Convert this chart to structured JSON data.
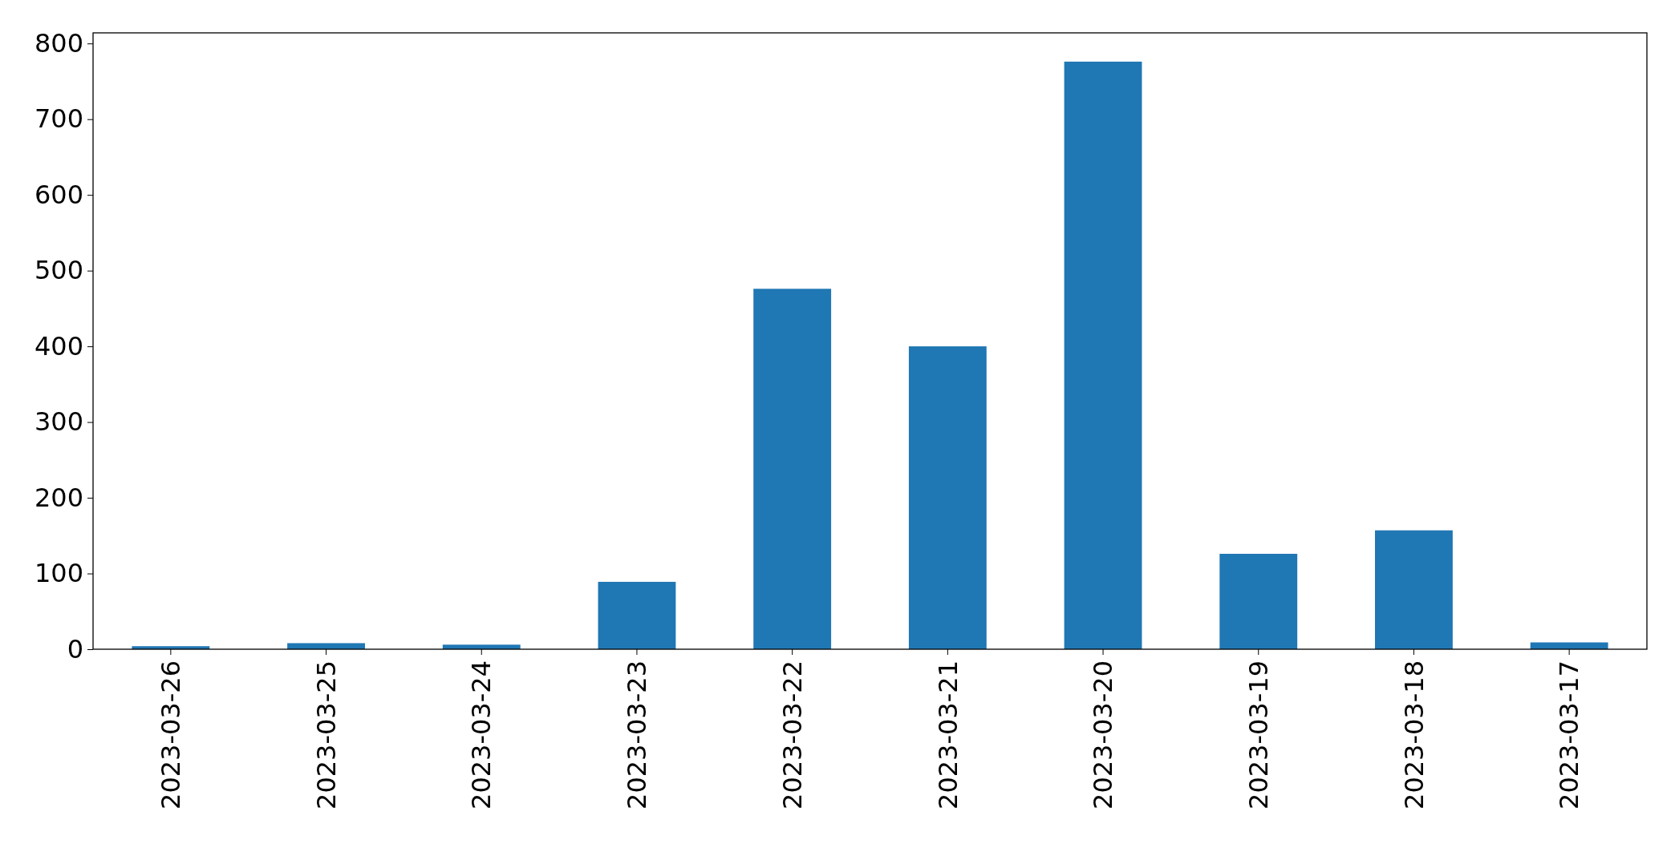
{
  "chart_data": {
    "type": "bar",
    "categories": [
      "2023-03-26",
      "2023-03-25",
      "2023-03-24",
      "2023-03-23",
      "2023-03-22",
      "2023-03-21",
      "2023-03-20",
      "2023-03-19",
      "2023-03-18",
      "2023-03-17"
    ],
    "values": [
      4,
      8,
      6,
      89,
      476,
      400,
      776,
      126,
      157,
      9
    ],
    "color": "#1f77b4",
    "ylim": [
      0,
      814
    ],
    "yticks": [
      0,
      100,
      200,
      300,
      400,
      500,
      600,
      700,
      800
    ],
    "grid": false
  }
}
